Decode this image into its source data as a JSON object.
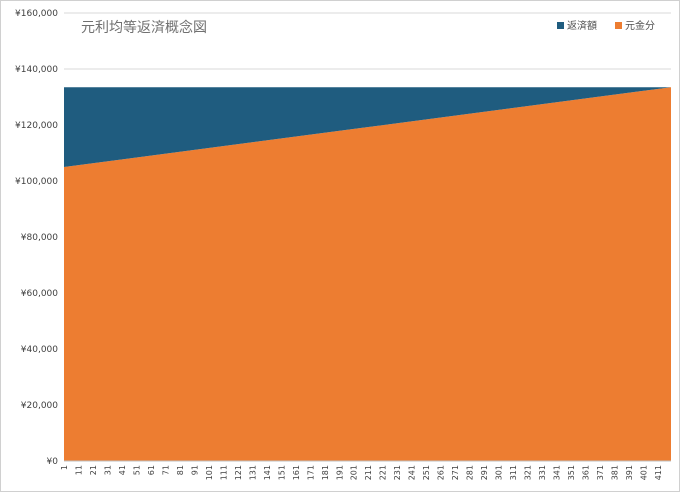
{
  "chart_data": {
    "type": "area",
    "stacked": true,
    "title": "元利均等返済概念図",
    "xlabel": "",
    "ylabel": "",
    "ylim": [
      0,
      160000
    ],
    "yticks": [
      "¥0",
      "¥20,000",
      "¥40,000",
      "¥60,000",
      "¥80,000",
      "¥100,000",
      "¥120,000",
      "¥140,000",
      "¥160,000"
    ],
    "x_range": [
      1,
      420
    ],
    "xticks": [
      "1",
      "11",
      "21",
      "31",
      "41",
      "51",
      "61",
      "71",
      "81",
      "91",
      "101",
      "111",
      "121",
      "131",
      "141",
      "151",
      "161",
      "171",
      "181",
      "191",
      "201",
      "211",
      "221",
      "231",
      "241",
      "251",
      "261",
      "271",
      "281",
      "291",
      "301",
      "311",
      "321",
      "331",
      "341",
      "351",
      "361",
      "371",
      "381",
      "391",
      "401",
      "411"
    ],
    "grid": true,
    "legend_position": "top-right",
    "series": [
      {
        "name": "元金分",
        "color": "#ED7D31",
        "x": [
          1,
          420
        ],
        "values": [
          105000,
          133500
        ]
      },
      {
        "name": "返済額",
        "color": "#1F5C7F",
        "x": [
          1,
          420
        ],
        "values": [
          28500,
          0
        ]
      }
    ],
    "total_payment": 133500
  }
}
